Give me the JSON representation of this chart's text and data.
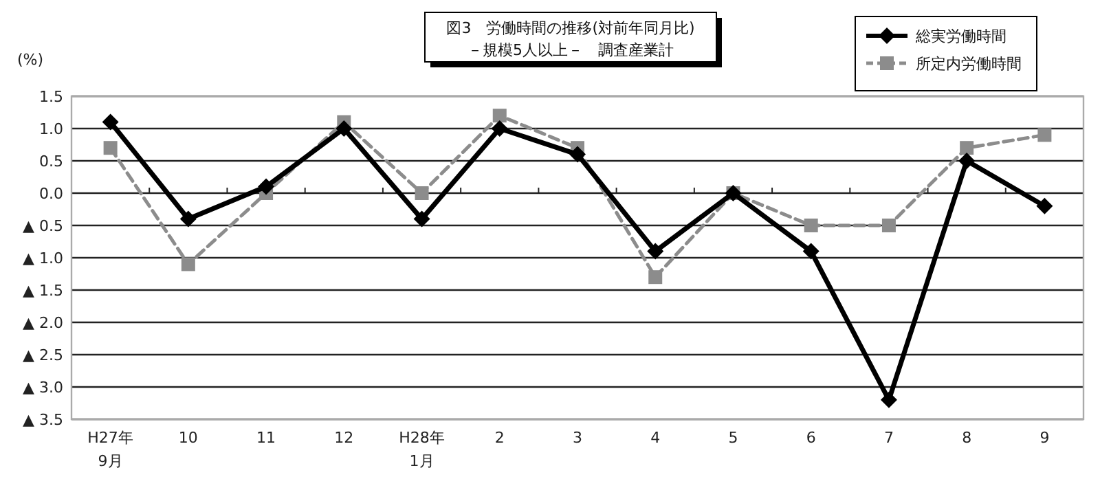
{
  "chart_data": {
    "type": "line",
    "title": "図3　労働時間の推移(対前年同月比)",
    "subtitle": "－規模5人以上－　調査産業計",
    "ylabel": "(%)",
    "categories": [
      "H27年\n9月",
      "10",
      "11",
      "12",
      "H28年\n1月",
      "2",
      "3",
      "4",
      "5",
      "6",
      "7",
      "8",
      "9"
    ],
    "series": [
      {
        "name": "総実労働時間",
        "color": "#000000",
        "marker": "diamond",
        "line_style": "solid",
        "values": [
          1.1,
          -0.4,
          0.1,
          1.0,
          -0.4,
          1.0,
          0.6,
          -0.9,
          0.0,
          -0.9,
          -3.2,
          0.5,
          -0.2
        ]
      },
      {
        "name": "所定内労働時間",
        "color": "#8c8c8c",
        "marker": "square",
        "line_style": "dashed",
        "values": [
          0.7,
          -1.1,
          0.0,
          1.1,
          0.0,
          1.2,
          0.7,
          -1.3,
          0.0,
          -0.5,
          -0.5,
          0.7,
          0.9
        ]
      }
    ],
    "ylim": [
      -3.5,
      1.5
    ],
    "yticks": [
      1.5,
      {
        "value": 1.0,
        "label": "1.0"
      },
      0.5,
      {
        "value": 0.0,
        "label": "0.0"
      },
      {
        "value": -0.5,
        "label": "▲ 0.5"
      },
      {
        "value": -1.0,
        "label": "▲ 1.0"
      },
      {
        "value": -1.5,
        "label": "▲ 1.5"
      },
      {
        "value": -2.0,
        "label": "▲ 2.0"
      },
      {
        "value": -2.5,
        "label": "▲ 2.5"
      },
      {
        "value": -3.0,
        "label": "▲ 3.0"
      },
      {
        "value": -3.5,
        "label": "▲ 3.5"
      }
    ],
    "grid": "y",
    "legend": "top right"
  }
}
